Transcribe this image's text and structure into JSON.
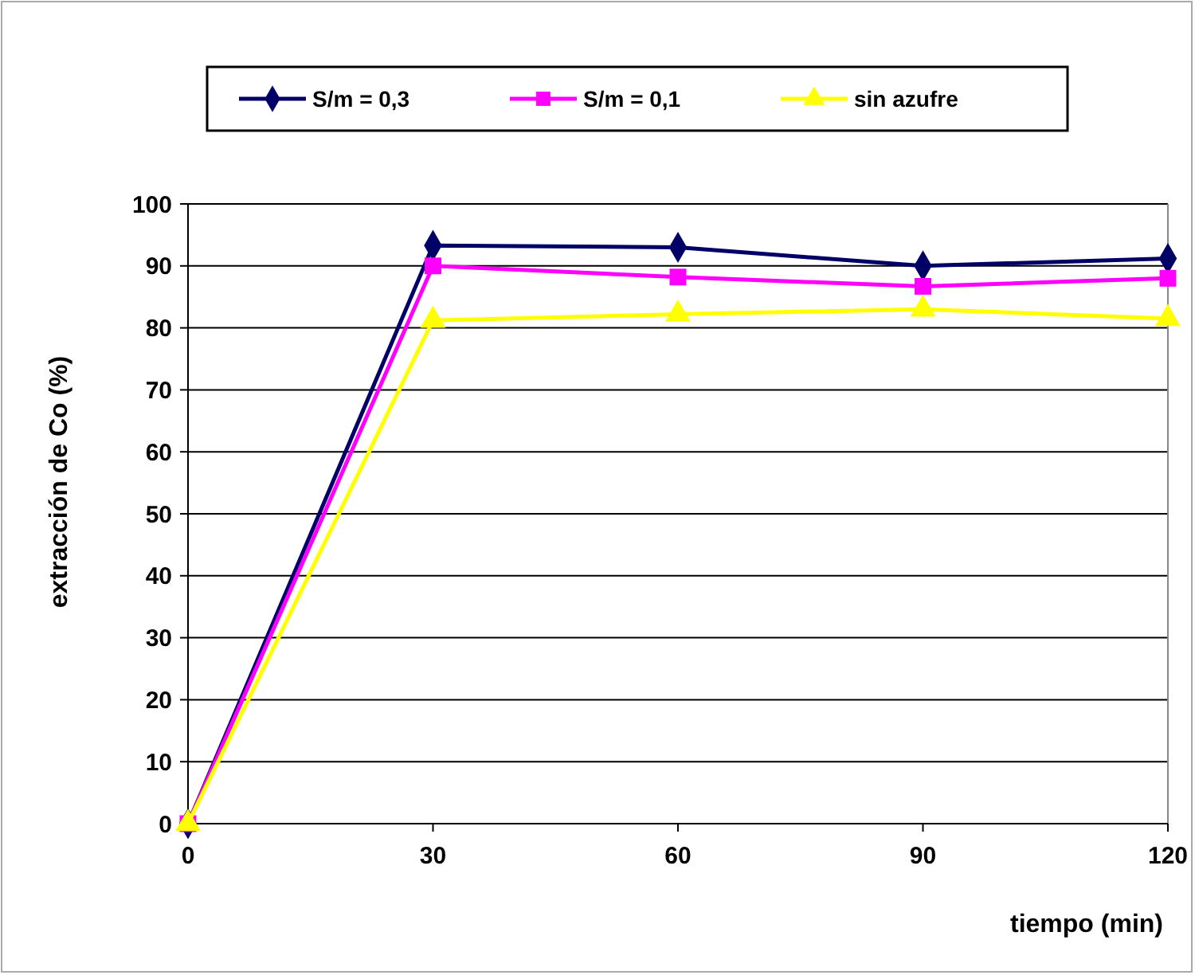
{
  "chart_data": {
    "type": "line",
    "xlabel": "tiempo (min)",
    "ylabel": "extracción de Co (%)",
    "x": [
      0,
      30,
      60,
      90,
      120
    ],
    "xlim": [
      0,
      120
    ],
    "xticks": [
      0,
      30,
      60,
      90,
      120
    ],
    "ylim": [
      0,
      100
    ],
    "yticks": [
      0,
      10,
      20,
      30,
      40,
      50,
      60,
      70,
      80,
      90,
      100
    ],
    "grid": "y",
    "legend": "top",
    "series": [
      {
        "name": "S/m = 0,3",
        "color": "#000066",
        "marker": "diamond",
        "values": [
          0,
          93.3,
          93,
          90,
          91.2
        ]
      },
      {
        "name": "S/m = 0,1",
        "color": "#ff00ff",
        "marker": "square",
        "values": [
          0,
          90,
          88.2,
          86.7,
          88
        ]
      },
      {
        "name": "sin azufre",
        "color": "#ffff00",
        "marker": "triangle",
        "values": [
          0,
          81.2,
          82.2,
          83,
          81.5
        ]
      }
    ]
  }
}
